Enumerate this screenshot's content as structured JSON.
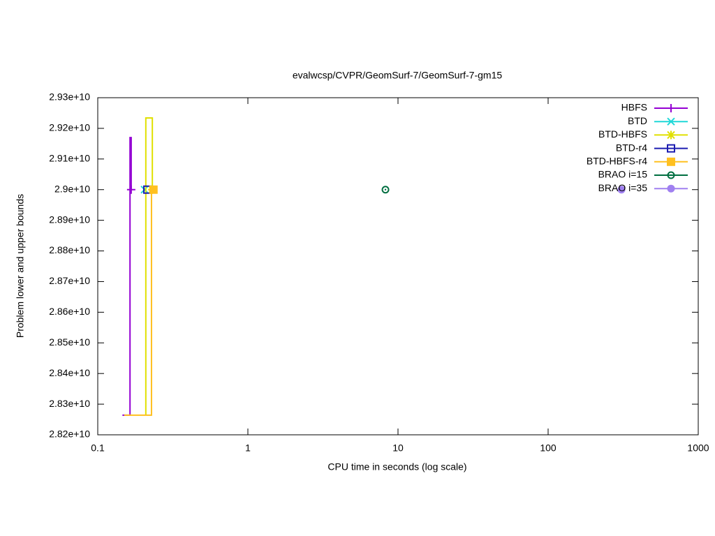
{
  "chart_data": {
    "type": "line",
    "title": "evalwcsp/CVPR/GeomSurf-7/GeomSurf-7-gm15",
    "xlabel": "CPU time in seconds (log scale)",
    "ylabel": "Problem lower and upper bounds",
    "xscale": "log",
    "xlim": [
      0.1,
      1000
    ],
    "xticks": [
      0.1,
      1,
      10,
      100,
      1000
    ],
    "ylim": [
      28200000000,
      29300000000
    ],
    "yticks": [
      {
        "value": 28200000000,
        "label": "2.82e+10"
      },
      {
        "value": 28300000000,
        "label": "2.83e+10"
      },
      {
        "value": 28400000000,
        "label": "2.84e+10"
      },
      {
        "value": 28500000000,
        "label": "2.85e+10"
      },
      {
        "value": 28600000000,
        "label": "2.86e+10"
      },
      {
        "value": 28700000000,
        "label": "2.87e+10"
      },
      {
        "value": 28800000000,
        "label": "2.88e+10"
      },
      {
        "value": 28900000000,
        "label": "2.89e+10"
      },
      {
        "value": 29000000000,
        "label": "2.9e+10"
      },
      {
        "value": 29100000000,
        "label": "2.91e+10"
      },
      {
        "value": 29200000000,
        "label": "2.92e+10"
      },
      {
        "value": 29300000000,
        "label": "2.93e+10"
      }
    ],
    "legend": "upper right",
    "series": [
      {
        "name": "HBFS",
        "color": "#9400d3",
        "marker": "plus",
        "x": [
          0.146,
          0.164,
          0.164,
          0.167,
          0.167
        ],
        "values": [
          28264000000,
          28264000000,
          29170000000,
          29170000000,
          29000000000
        ]
      },
      {
        "name": "BTD",
        "color": "#20d8d8",
        "marker": "cross",
        "x": [
          0.205
        ],
        "values": [
          29000000000
        ]
      },
      {
        "name": "BTD-HBFS",
        "color": "#e0e000",
        "marker": "star",
        "x": [
          0.209,
          0.209,
          0.231,
          0.231
        ],
        "values": [
          28264000000,
          29234000000,
          29234000000,
          29000000000
        ]
      },
      {
        "name": "BTD-r4",
        "color": "#1c1cb0",
        "marker": "square-open",
        "x": [
          0.214
        ],
        "values": [
          29000000000
        ]
      },
      {
        "name": "BTD-HBFS-r4",
        "color": "#ffc020",
        "marker": "square",
        "x": [
          0.15,
          0.228,
          0.228,
          0.235
        ],
        "values": [
          28264000000,
          28264000000,
          29000000000,
          29000000000
        ]
      },
      {
        "name": "BRAO i=15",
        "color": "#006e40",
        "marker": "circle-dot",
        "x": [
          8.25
        ],
        "values": [
          29000000000
        ]
      },
      {
        "name": "BRAO i=35",
        "color": "#a080f0",
        "marker": "circle",
        "x": [
          308
        ],
        "values": [
          29000000000
        ]
      }
    ]
  }
}
